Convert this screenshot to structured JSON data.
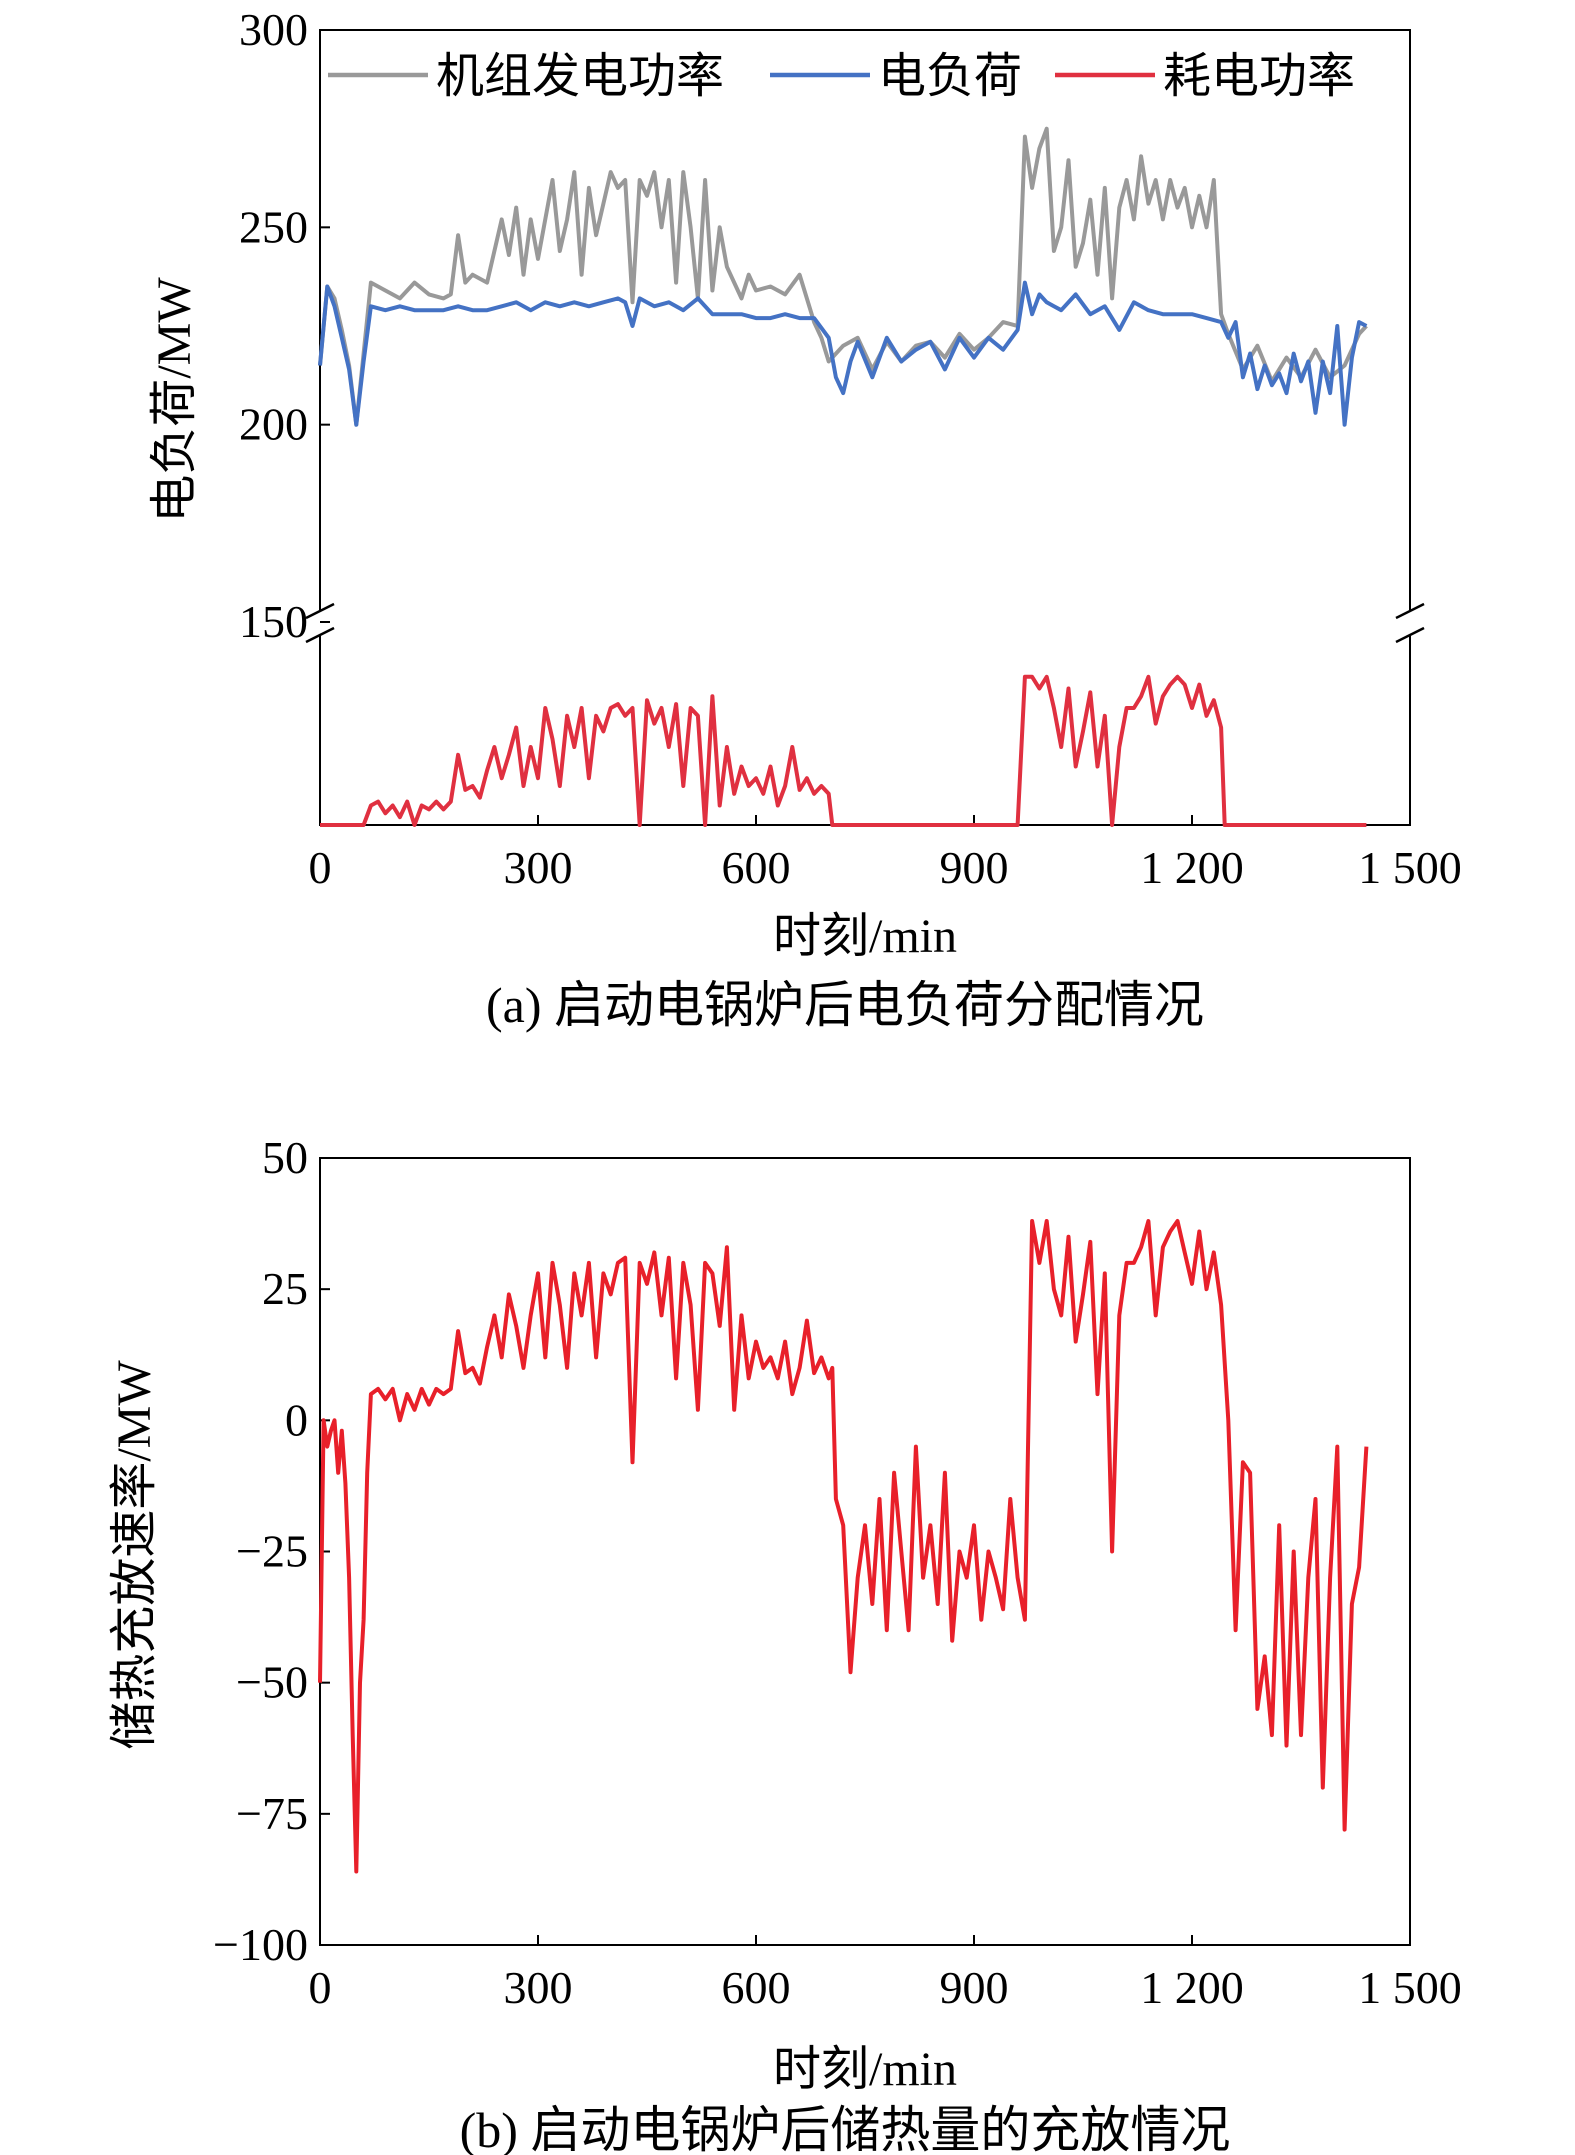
{
  "chart_data": [
    {
      "type": "line",
      "caption": "(a) 启动电锅炉后电负荷分配情况",
      "xlabel": "时刻/min",
      "ylabel": "电负荷/MW",
      "xlim": [
        0,
        1500
      ],
      "ylim_upper": [
        150,
        300
      ],
      "y_axis_break": true,
      "xticks": [
        0,
        300,
        600,
        900,
        1200,
        1500
      ],
      "xtick_labels": [
        "0",
        "300",
        "600",
        "900",
        "1 200",
        "1 500"
      ],
      "yticks": [
        150,
        200,
        250,
        300
      ],
      "ytick_labels": [
        "150",
        "200",
        "250",
        "300"
      ],
      "legend_position": "top",
      "series": [
        {
          "name": "机组发电功率",
          "color": "#999999",
          "x": [
            0,
            10,
            20,
            30,
            40,
            50,
            60,
            70,
            90,
            110,
            130,
            150,
            170,
            180,
            190,
            200,
            210,
            230,
            250,
            260,
            270,
            280,
            290,
            300,
            320,
            330,
            340,
            350,
            360,
            370,
            380,
            390,
            400,
            410,
            420,
            430,
            440,
            450,
            460,
            470,
            480,
            490,
            500,
            510,
            520,
            530,
            540,
            550,
            560,
            570,
            580,
            590,
            600,
            620,
            640,
            660,
            680,
            690,
            700,
            720,
            740,
            760,
            780,
            800,
            820,
            840,
            860,
            880,
            900,
            920,
            940,
            960,
            970,
            980,
            990,
            1000,
            1010,
            1020,
            1030,
            1040,
            1050,
            1060,
            1070,
            1080,
            1090,
            1100,
            1110,
            1120,
            1130,
            1140,
            1150,
            1160,
            1170,
            1180,
            1190,
            1200,
            1210,
            1220,
            1230,
            1240,
            1250,
            1270,
            1290,
            1310,
            1330,
            1350,
            1370,
            1390,
            1410,
            1430,
            1440
          ],
          "y": [
            215,
            235,
            232,
            224,
            215,
            200,
            218,
            236,
            234,
            232,
            236,
            233,
            232,
            233,
            248,
            236,
            238,
            236,
            252,
            243,
            255,
            238,
            252,
            242,
            262,
            244,
            252,
            264,
            238,
            260,
            248,
            256,
            264,
            260,
            262,
            231,
            262,
            258,
            264,
            250,
            262,
            236,
            264,
            250,
            232,
            262,
            234,
            250,
            240,
            236,
            232,
            238,
            234,
            235,
            233,
            238,
            226,
            222,
            216,
            220,
            222,
            214,
            221,
            216,
            220,
            221,
            217,
            223,
            219,
            222,
            226,
            225,
            273,
            260,
            270,
            275,
            244,
            250,
            267,
            240,
            246,
            257,
            238,
            260,
            232,
            255,
            262,
            252,
            268,
            256,
            262,
            252,
            262,
            255,
            260,
            250,
            258,
            250,
            262,
            228,
            223,
            214,
            220,
            211,
            217,
            212,
            219,
            212,
            215,
            223,
            225
          ]
        },
        {
          "name": "电负荷",
          "color": "#4472c4",
          "x": [
            0,
            10,
            20,
            30,
            40,
            50,
            60,
            70,
            90,
            110,
            130,
            150,
            170,
            190,
            210,
            230,
            250,
            270,
            290,
            310,
            330,
            350,
            370,
            390,
            410,
            420,
            430,
            440,
            460,
            480,
            500,
            520,
            540,
            560,
            580,
            600,
            620,
            640,
            660,
            680,
            700,
            710,
            720,
            730,
            740,
            760,
            780,
            800,
            820,
            840,
            860,
            880,
            900,
            920,
            940,
            960,
            970,
            980,
            990,
            1000,
            1010,
            1020,
            1040,
            1060,
            1080,
            1100,
            1120,
            1140,
            1160,
            1180,
            1200,
            1220,
            1240,
            1250,
            1260,
            1270,
            1280,
            1290,
            1300,
            1310,
            1320,
            1330,
            1340,
            1350,
            1360,
            1370,
            1380,
            1390,
            1400,
            1410,
            1420,
            1430,
            1440
          ],
          "y": [
            215,
            235,
            230,
            222,
            214,
            200,
            216,
            230,
            229,
            230,
            229,
            229,
            229,
            230,
            229,
            229,
            230,
            231,
            229,
            231,
            230,
            231,
            230,
            231,
            232,
            231,
            225,
            232,
            230,
            231,
            229,
            232,
            228,
            228,
            228,
            227,
            227,
            228,
            227,
            227,
            222,
            212,
            208,
            216,
            221,
            212,
            222,
            216,
            219,
            221,
            214,
            222,
            217,
            222,
            219,
            224,
            236,
            228,
            233,
            231,
            230,
            229,
            233,
            228,
            230,
            224,
            231,
            229,
            228,
            228,
            228,
            227,
            226,
            222,
            226,
            212,
            218,
            209,
            215,
            210,
            213,
            208,
            218,
            211,
            216,
            203,
            216,
            208,
            225,
            200,
            217,
            226,
            225
          ]
        },
        {
          "name": "耗电功率",
          "color": "#e03040",
          "x": [
            0,
            60,
            70,
            80,
            90,
            100,
            110,
            120,
            130,
            140,
            150,
            160,
            170,
            180,
            190,
            200,
            210,
            220,
            230,
            240,
            250,
            260,
            270,
            280,
            290,
            300,
            310,
            320,
            330,
            340,
            350,
            360,
            370,
            380,
            390,
            400,
            410,
            420,
            430,
            440,
            450,
            460,
            470,
            480,
            490,
            500,
            510,
            520,
            530,
            540,
            550,
            560,
            570,
            580,
            590,
            600,
            610,
            620,
            630,
            640,
            650,
            660,
            670,
            680,
            690,
            700,
            705,
            720,
            800,
            900,
            960,
            970,
            980,
            990,
            1000,
            1010,
            1020,
            1030,
            1040,
            1050,
            1060,
            1070,
            1080,
            1090,
            1100,
            1110,
            1120,
            1130,
            1140,
            1150,
            1160,
            1170,
            1180,
            1190,
            1200,
            1210,
            1220,
            1230,
            1240,
            1245,
            1260,
            1300,
            1400,
            1440
          ],
          "y": [
            0,
            0,
            5,
            6,
            3,
            5,
            2,
            6,
            0,
            5,
            4,
            6,
            4,
            6,
            18,
            9,
            10,
            7,
            14,
            20,
            12,
            18,
            25,
            10,
            20,
            12,
            30,
            22,
            10,
            28,
            20,
            30,
            12,
            28,
            24,
            30,
            31,
            28,
            30,
            0,
            32,
            26,
            30,
            20,
            31,
            10,
            30,
            28,
            0,
            33,
            5,
            20,
            8,
            15,
            10,
            12,
            8,
            15,
            5,
            10,
            20,
            9,
            12,
            8,
            10,
            8,
            0,
            0,
            0,
            0,
            0,
            38,
            38,
            35,
            38,
            30,
            20,
            35,
            15,
            24,
            34,
            15,
            28,
            0,
            20,
            30,
            30,
            33,
            38,
            26,
            33,
            36,
            38,
            36,
            30,
            36,
            28,
            32,
            25,
            0,
            0,
            0,
            0,
            0
          ]
        }
      ]
    },
    {
      "type": "line",
      "caption": "(b) 启动电锅炉后储热量的充放情况",
      "xlabel": "时刻/min",
      "ylabel": "储热充放速率/MW",
      "xlim": [
        0,
        1500
      ],
      "ylim": [
        -100,
        50
      ],
      "xticks": [
        0,
        300,
        600,
        900,
        1200,
        1500
      ],
      "xtick_labels": [
        "0",
        "300",
        "600",
        "900",
        "1 200",
        "1 500"
      ],
      "yticks": [
        -100,
        -75,
        -50,
        -25,
        0,
        25,
        50
      ],
      "ytick_labels": [
        "−100",
        "−75",
        "−50",
        "−25",
        "0",
        "25",
        "50"
      ],
      "series": [
        {
          "color": "#e8202a",
          "x": [
            0,
            5,
            10,
            15,
            20,
            25,
            30,
            35,
            40,
            45,
            50,
            55,
            60,
            65,
            70,
            80,
            90,
            100,
            110,
            120,
            130,
            140,
            150,
            160,
            170,
            180,
            190,
            200,
            210,
            220,
            230,
            240,
            250,
            260,
            270,
            280,
            290,
            300,
            310,
            320,
            330,
            340,
            350,
            360,
            370,
            380,
            390,
            400,
            410,
            420,
            430,
            440,
            450,
            460,
            470,
            480,
            490,
            500,
            510,
            520,
            530,
            540,
            550,
            560,
            570,
            580,
            590,
            600,
            610,
            620,
            630,
            640,
            650,
            660,
            670,
            680,
            690,
            700,
            705,
            710,
            720,
            730,
            740,
            750,
            760,
            770,
            780,
            790,
            800,
            810,
            820,
            830,
            840,
            850,
            860,
            870,
            880,
            890,
            900,
            910,
            920,
            930,
            940,
            950,
            960,
            970,
            980,
            990,
            1000,
            1010,
            1020,
            1030,
            1040,
            1050,
            1060,
            1070,
            1080,
            1090,
            1100,
            1110,
            1120,
            1130,
            1140,
            1150,
            1160,
            1170,
            1180,
            1190,
            1200,
            1210,
            1220,
            1230,
            1240,
            1250,
            1260,
            1270,
            1280,
            1290,
            1300,
            1310,
            1320,
            1330,
            1340,
            1350,
            1360,
            1370,
            1380,
            1390,
            1400,
            1410,
            1420,
            1430,
            1440
          ],
          "y": [
            -50,
            0,
            -5,
            -2,
            0,
            -10,
            -2,
            -12,
            -30,
            -60,
            -86,
            -50,
            -38,
            -10,
            5,
            6,
            4,
            6,
            0,
            5,
            2,
            6,
            3,
            6,
            5,
            6,
            17,
            9,
            10,
            7,
            14,
            20,
            12,
            24,
            18,
            10,
            20,
            28,
            12,
            30,
            22,
            10,
            28,
            20,
            30,
            12,
            28,
            24,
            30,
            31,
            -8,
            30,
            26,
            32,
            20,
            31,
            8,
            30,
            22,
            2,
            30,
            28,
            18,
            33,
            2,
            20,
            8,
            15,
            10,
            12,
            8,
            15,
            5,
            10,
            19,
            9,
            12,
            8,
            10,
            -15,
            -20,
            -48,
            -30,
            -20,
            -35,
            -15,
            -40,
            -10,
            -25,
            -40,
            -5,
            -30,
            -20,
            -35,
            -10,
            -42,
            -25,
            -30,
            -20,
            -38,
            -25,
            -30,
            -36,
            -15,
            -30,
            -38,
            38,
            30,
            38,
            25,
            20,
            35,
            15,
            24,
            34,
            5,
            28,
            -25,
            20,
            30,
            30,
            33,
            38,
            20,
            33,
            36,
            38,
            32,
            26,
            36,
            25,
            32,
            22,
            0,
            -40,
            -8,
            -10,
            -55,
            -45,
            -60,
            -20,
            -62,
            -25,
            -60,
            -30,
            -15,
            -70,
            -30,
            -5,
            -78,
            -35,
            -28,
            -5
          ]
        }
      ]
    }
  ]
}
